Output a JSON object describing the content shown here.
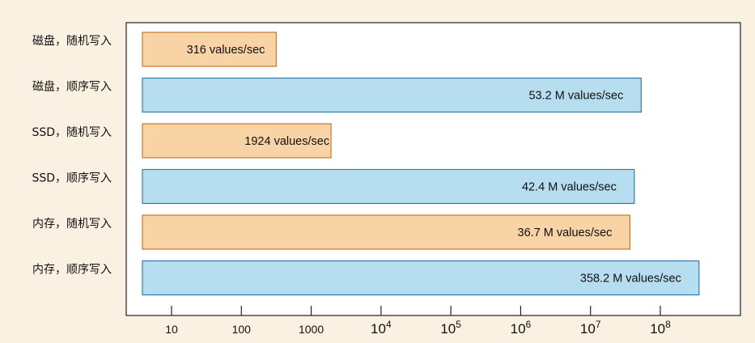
{
  "chart_data": {
    "type": "bar",
    "orientation": "horizontal",
    "x_scale": "log",
    "xlim": [
      3.8,
      600000000
    ],
    "grid": false,
    "legend": "none",
    "categories": [
      "磁盘，随机写入",
      "磁盘，顺序写入",
      "SSD，随机写入",
      "SSD，顺序写入",
      "内存，随机写入",
      "内存，顺序写入"
    ],
    "values": [
      316,
      53200000,
      1924,
      42400000,
      36700000,
      358200000
    ],
    "data_labels": [
      "316 values/sec",
      "53.2 M values/sec",
      "1924 values/sec",
      "42.4 M values/sec",
      "36.7 M values/sec",
      "358.2 M values/sec"
    ],
    "bar_kind": [
      "random",
      "sequential",
      "random",
      "sequential",
      "random",
      "sequential"
    ],
    "colors": {
      "random_fill": "#f8d3a6",
      "random_stroke": "#c8782a",
      "sequential_fill": "#b7def0",
      "sequential_stroke": "#2f7ea8",
      "background": "#fbf1e3",
      "plot_background": "#ffffff"
    },
    "x_ticks": [
      {
        "value": 10,
        "base": "10",
        "exp": ""
      },
      {
        "value": 100,
        "base": "100",
        "exp": ""
      },
      {
        "value": 1000,
        "base": "1000",
        "exp": ""
      },
      {
        "value": 10000,
        "base": "10",
        "exp": "4"
      },
      {
        "value": 100000,
        "base": "10",
        "exp": "5"
      },
      {
        "value": 1000000,
        "base": "10",
        "exp": "6"
      },
      {
        "value": 10000000,
        "base": "10",
        "exp": "7"
      },
      {
        "value": 100000000,
        "base": "10",
        "exp": "8"
      }
    ]
  }
}
